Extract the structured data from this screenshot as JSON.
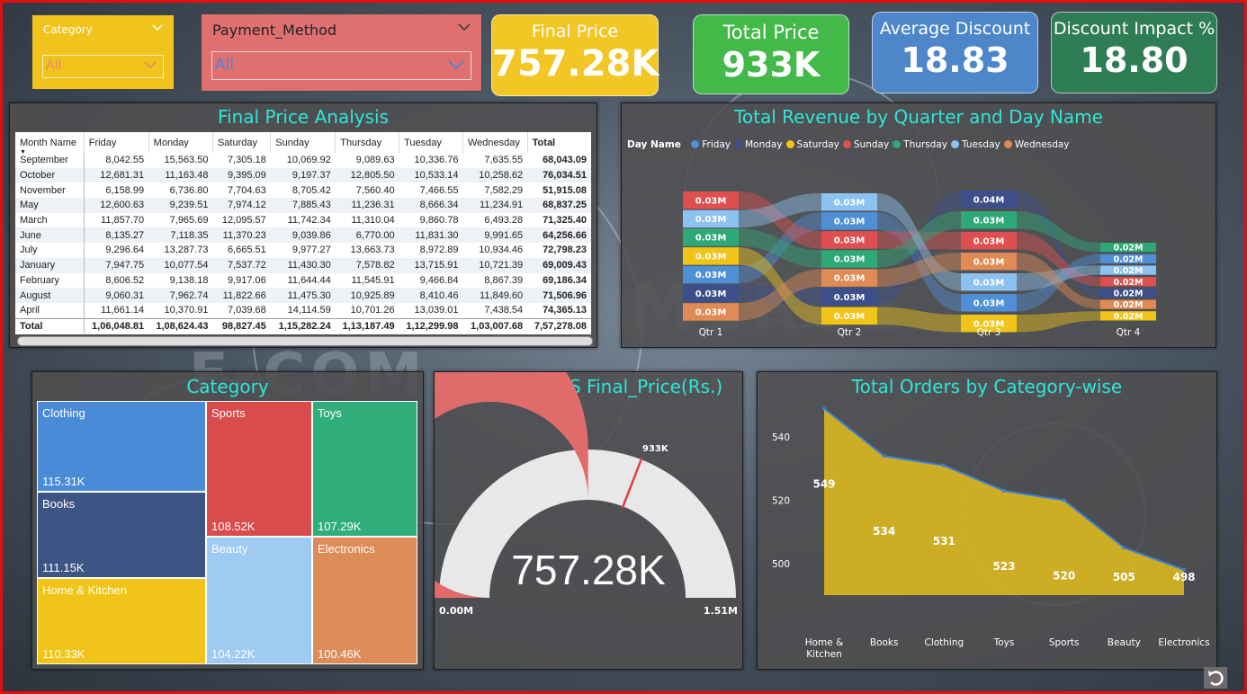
{
  "slicers": {
    "category": {
      "label": "Category",
      "value": "All"
    },
    "payment": {
      "label": "Payment_Method",
      "value": "All"
    }
  },
  "kpis": [
    {
      "title": "Final Price",
      "value": "757.28K",
      "color": "#f2c624"
    },
    {
      "title": "Total Price",
      "value": "933K",
      "color": "#43b949"
    },
    {
      "title": "Average Discount",
      "value": "18.83",
      "color": "#4d86c9"
    },
    {
      "title": "Discount Impact %",
      "value": "18.80",
      "color": "#2f7d55"
    }
  ],
  "matrix": {
    "title": "Final Price Analysis",
    "columns": [
      "Month Name",
      "Friday",
      "Monday",
      "Saturday",
      "Sunday",
      "Thursday",
      "Tuesday",
      "Wednesday",
      "Total"
    ],
    "rows": [
      [
        "September",
        "8,042.55",
        "15,563.50",
        "7,305.18",
        "10,069.92",
        "9,089.63",
        "10,336.76",
        "7,635.55",
        "68,043.09"
      ],
      [
        "October",
        "12,681.31",
        "11,163.48",
        "9,395.09",
        "9,197.37",
        "12,805.50",
        "10,533.14",
        "10,258.62",
        "76,034.51"
      ],
      [
        "November",
        "6,158.99",
        "6,736.80",
        "7,704.63",
        "8,705.42",
        "7,560.40",
        "7,466.55",
        "7,582.29",
        "51,915.08"
      ],
      [
        "May",
        "12,600.63",
        "9,239.51",
        "7,974.12",
        "7,885.43",
        "11,236.31",
        "8,666.34",
        "11,234.91",
        "68,837.25"
      ],
      [
        "March",
        "11,857.70",
        "7,965.69",
        "12,095.57",
        "11,742.34",
        "11,310.04",
        "9,860.78",
        "6,493.28",
        "71,325.40"
      ],
      [
        "June",
        "8,135.27",
        "7,118.35",
        "11,370.23",
        "9,039.86",
        "6,770.00",
        "11,831.30",
        "9,991.65",
        "64,256.66"
      ],
      [
        "July",
        "9,296.64",
        "13,287.73",
        "6,665.51",
        "9,977.27",
        "13,663.73",
        "8,972.89",
        "10,934.46",
        "72,798.23"
      ],
      [
        "January",
        "7,947.75",
        "10,077.54",
        "7,537.72",
        "11,430.30",
        "7,578.82",
        "13,715.91",
        "10,721.39",
        "69,009.43"
      ],
      [
        "February",
        "8,606.52",
        "9,138.18",
        "9,917.06",
        "11,644.44",
        "11,545.91",
        "9,466.84",
        "8,867.39",
        "69,186.34"
      ],
      [
        "August",
        "9,060.31",
        "7,962.74",
        "11,822.66",
        "11,475.30",
        "10,925.89",
        "8,410.46",
        "11,849.60",
        "71,506.96"
      ],
      [
        "April",
        "11,661.14",
        "10,370.91",
        "7,039.68",
        "14,114.59",
        "10,701.26",
        "13,039.01",
        "7,438.54",
        "74,365.13"
      ]
    ],
    "total": [
      "Total",
      "1,06,048.81",
      "1,08,624.43",
      "98,827.45",
      "1,15,282.24",
      "1,13,187.49",
      "1,12,299.98",
      "1,03,007.68",
      "7,57,278.08"
    ]
  },
  "ribbon": {
    "title": "Total Revenue by Quarter and Day Name",
    "legend_title": "Day Name",
    "legend": [
      {
        "name": "Friday",
        "color": "#4f8fd6"
      },
      {
        "name": "Monday",
        "color": "#3c4f8a"
      },
      {
        "name": "Saturday",
        "color": "#f0c419"
      },
      {
        "name": "Sunday",
        "color": "#df4f4f"
      },
      {
        "name": "Thursday",
        "color": "#2fa877"
      },
      {
        "name": "Tuesday",
        "color": "#8cc2ef"
      },
      {
        "name": "Wednesday",
        "color": "#e08a55"
      }
    ],
    "quarters": [
      "Qtr 1",
      "Qtr 2",
      "Qtr 3",
      "Qtr 4"
    ],
    "stacks": [
      {
        "labels": [
          "0.03M",
          "0.03M",
          "0.03M",
          "0.03M",
          "0.03M",
          "0.03M",
          "0.03M"
        ],
        "colors": [
          "#df4f4f",
          "#8cc2ef",
          "#2fa877",
          "#f0c419",
          "#4f8fd6",
          "#3c4f8a",
          "#e08a55"
        ]
      },
      {
        "labels": [
          "0.03M",
          "0.03M",
          "0.03M",
          "0.03M",
          "0.03M",
          "0.03M",
          "0.03M"
        ],
        "colors": [
          "#8cc2ef",
          "#4f8fd6",
          "#df4f4f",
          "#2fa877",
          "#e08a55",
          "#3c4f8a",
          "#f0c419"
        ]
      },
      {
        "labels": [
          "0.04M",
          "0.03M",
          "0.03M",
          "0.03M",
          "0.03M",
          "0.03M",
          "0.03M"
        ],
        "colors": [
          "#3c4f8a",
          "#2fa877",
          "#df4f4f",
          "#e08a55",
          "#8cc2ef",
          "#4f8fd6",
          "#f0c419"
        ]
      },
      {
        "labels": [
          "0.02M",
          "0.02M",
          "0.02M",
          "0.02M",
          "0.02M",
          "0.02M",
          "0.02M"
        ],
        "colors": [
          "#2fa877",
          "#4f8fd6",
          "#8cc2ef",
          "#df4f4f",
          "#3c4f8a",
          "#e08a55",
          "#f0c419"
        ]
      }
    ]
  },
  "treemap": {
    "title": "Category",
    "items": [
      {
        "name": "Clothing",
        "value": "115.31K",
        "color": "#4a8bd8"
      },
      {
        "name": "Books",
        "value": "111.15K",
        "color": "#3d5585"
      },
      {
        "name": "Home & Kitchen",
        "value": "110.33K",
        "color": "#f0c419"
      },
      {
        "name": "Sports",
        "value": "108.52K",
        "color": "#da4b4b"
      },
      {
        "name": "Beauty",
        "value": "104.22K",
        "color": "#9ecbf2"
      },
      {
        "name": "Toys",
        "value": "107.29K",
        "color": "#2fae7c"
      },
      {
        "name": "Electronics",
        "value": "100.46K",
        "color": "#dd8b57"
      }
    ]
  },
  "gauge": {
    "title": "Price (Rs.) V/S Final_Price(Rs.)",
    "value": 757.28,
    "min": 0,
    "max": 1510,
    "target": 933,
    "value_label": "757.28K",
    "min_label": "0.00M",
    "max_label": "1.51M",
    "target_label": "933K",
    "fill_color": "#e06b6b"
  },
  "chart_data": {
    "type": "area",
    "title": "Total Orders by Category-wise",
    "categories": [
      "Home & Kitchen",
      "Books",
      "Clothing",
      "Toys",
      "Sports",
      "Beauty",
      "Electronics"
    ],
    "values": [
      549,
      534,
      531,
      523,
      520,
      505,
      498
    ],
    "ylim": [
      490,
      548
    ],
    "yticks": [
      500,
      520,
      540
    ],
    "fill_color": "#e8c21a",
    "line_color": "#3a7fd6"
  }
}
